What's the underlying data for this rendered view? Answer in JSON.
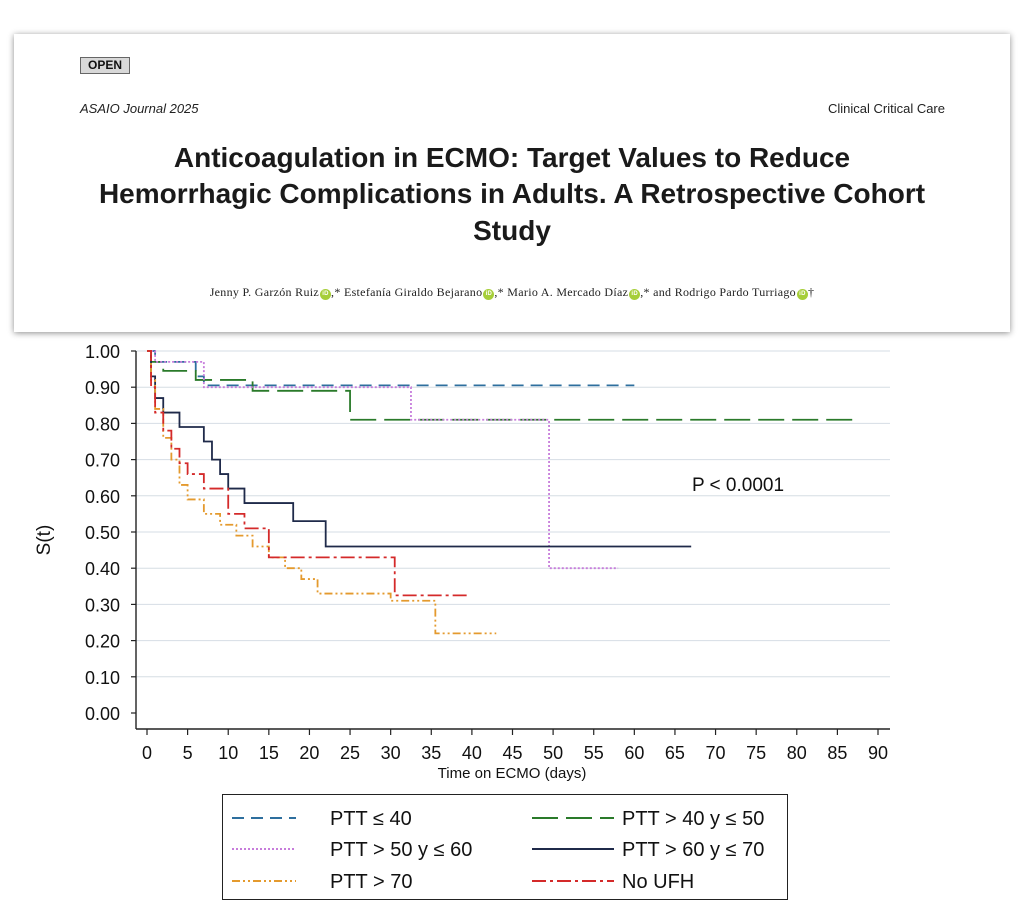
{
  "header": {
    "badge": "OPEN",
    "journal": "ASAIO Journal 2025",
    "section": "Clinical Critical Care",
    "title_line1": "Anticoagulation in ECMO: Target Values to Reduce",
    "title_line2": "Hemorrhagic Complications in Adults. A Retrospective Cohort",
    "title_line3": "Study",
    "authors": [
      {
        "name": "Jenny P. Garzón Ruiz",
        "mark": ",*"
      },
      {
        "name": "Estefanía Giraldo Bejarano",
        "mark": ",*"
      },
      {
        "name": "Mario A. Mercado Díaz",
        "mark": ",* and"
      },
      {
        "name": "Rodrigo Pardo Turriago",
        "mark": "†"
      }
    ],
    "orcid_label": "iD"
  },
  "chart_data": {
    "type": "line",
    "subtype": "kaplan-meier-step",
    "title": "",
    "xlabel": "Time on ECMO (days)",
    "ylabel": "S(t)",
    "xlim": [
      0,
      90
    ],
    "ylim": [
      0,
      1
    ],
    "xticks": [
      "0",
      "5",
      "10",
      "15",
      "20",
      "25",
      "30",
      "35",
      "40",
      "45",
      "50",
      "55",
      "60",
      "65",
      "70",
      "75",
      "80",
      "85",
      "90"
    ],
    "yticks": [
      "0.00",
      "0.10",
      "0.20",
      "0.30",
      "0.40",
      "0.50",
      "0.60",
      "0.70",
      "0.80",
      "0.90",
      "1.00"
    ],
    "annotation": "P < 0.0001",
    "legend_position": "bottom",
    "series": [
      {
        "name": "PTT ≤ 40",
        "color": "#2e6f9e",
        "dash": "12,7",
        "x": [
          0,
          1,
          6,
          7,
          60
        ],
        "y": [
          1.0,
          0.97,
          0.93,
          0.905,
          0.905
        ]
      },
      {
        "name": "PTT > 40 y ≤ 50",
        "color": "#2a7a2a",
        "dash": "26,8",
        "x": [
          0,
          0.5,
          2,
          6,
          13,
          25,
          87
        ],
        "y": [
          1.0,
          0.97,
          0.945,
          0.92,
          0.89,
          0.81,
          0.81
        ]
      },
      {
        "name": "PTT > 50 y ≤ 60",
        "color": "#c77ddb",
        "dash": "2,2",
        "x": [
          0,
          1,
          7,
          32.5,
          49.5,
          58
        ],
        "y": [
          1.0,
          0.97,
          0.9,
          0.81,
          0.4,
          0.4
        ]
      },
      {
        "name": "PTT > 60 y ≤ 70",
        "color": "#1f2a4a",
        "dash": "",
        "x": [
          0,
          0.5,
          1,
          2,
          4,
          7,
          8,
          9,
          10,
          12,
          18,
          22,
          67
        ],
        "y": [
          1.0,
          0.93,
          0.87,
          0.83,
          0.79,
          0.75,
          0.7,
          0.66,
          0.62,
          0.58,
          0.53,
          0.46,
          0.46
        ]
      },
      {
        "name": "PTT > 70",
        "color": "#e49a2e",
        "dash": "8,3,2,3,2,3",
        "x": [
          0,
          0.5,
          1,
          2,
          3,
          4,
          5,
          7,
          9,
          11,
          13,
          15,
          17,
          19,
          21,
          30,
          35.5,
          43
        ],
        "y": [
          1.0,
          0.92,
          0.84,
          0.76,
          0.7,
          0.63,
          0.59,
          0.55,
          0.52,
          0.49,
          0.46,
          0.43,
          0.4,
          0.37,
          0.33,
          0.31,
          0.22,
          0.22
        ]
      },
      {
        "name": "No UFH",
        "color": "#d42a2a",
        "dash": "14,4,3,4",
        "x": [
          0,
          0.5,
          1,
          2,
          3,
          4,
          5,
          7,
          10,
          12,
          15,
          30.5,
          39.5
        ],
        "y": [
          1.0,
          0.9,
          0.83,
          0.78,
          0.73,
          0.69,
          0.66,
          0.62,
          0.55,
          0.51,
          0.43,
          0.325,
          0.325
        ]
      }
    ]
  }
}
